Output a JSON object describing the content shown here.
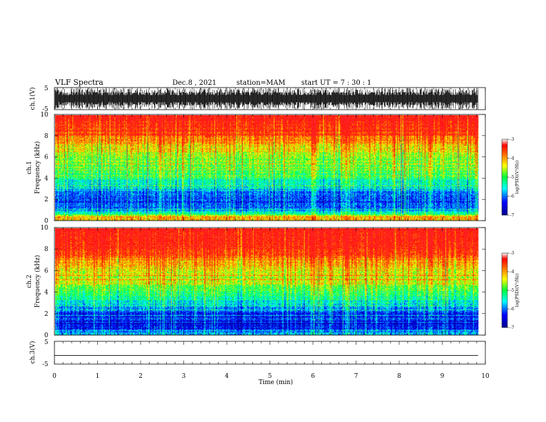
{
  "header": {
    "title": "VLF Spectra",
    "date": "Dec.8 , 2021",
    "station": "station=MAM",
    "start": "start UT = 7 : 30 : 1"
  },
  "chart_data": [
    {
      "type": "line",
      "panel": "ch1-waveform",
      "ylabel": "ch.1(V)",
      "ylim": [
        -5,
        5
      ],
      "yticks": [
        "5",
        "-5"
      ],
      "xlim": [
        0,
        10
      ],
      "data_extent_min": 9.83,
      "signal": "dense impulsive noise, amplitude ±5 V"
    },
    {
      "type": "heatmap",
      "panel": "ch1-spectrogram",
      "ylabel": "ch.1\nFrequency (kHz)",
      "ylim": [
        0,
        10
      ],
      "yticks": [
        "0",
        "2",
        "4",
        "6",
        "8",
        "10"
      ],
      "xlim": [
        0,
        10
      ],
      "data_extent_min": 9.83,
      "colorbar": {
        "min": -7,
        "max": -3,
        "ticks": [
          "-3",
          "-4",
          "-5",
          "-6",
          "-7"
        ],
        "label": "log(PSD)(V²/Hz)"
      },
      "profile_khz": [
        [
          0,
          -4.4
        ],
        [
          0.3,
          -4.0
        ],
        [
          0.6,
          -5.2
        ],
        [
          1.0,
          -6.0
        ],
        [
          1.6,
          -6.2
        ],
        [
          2.5,
          -6.1
        ],
        [
          3.2,
          -5.6
        ],
        [
          4.0,
          -5.2
        ],
        [
          5.0,
          -4.9
        ],
        [
          6.0,
          -4.7
        ],
        [
          7.0,
          -4.3
        ],
        [
          8.0,
          -3.8
        ],
        [
          9.0,
          -3.4
        ],
        [
          10.0,
          -3.2
        ]
      ],
      "bright_times_min": [
        2.45,
        6.0,
        6.75,
        8.7
      ]
    },
    {
      "type": "heatmap",
      "panel": "ch2-spectrogram",
      "ylabel": "ch.2\nFrequency (kHz)",
      "ylim": [
        0,
        10
      ],
      "yticks": [
        "0",
        "2",
        "4",
        "6",
        "8",
        "10"
      ],
      "xlim": [
        0,
        10
      ],
      "data_extent_min": 9.83,
      "colorbar": {
        "min": -7,
        "max": -3,
        "ticks": [
          "-3",
          "-4",
          "-5",
          "-6",
          "-7"
        ],
        "label": "log(PSD)(V²/Hz)"
      },
      "profile_khz": [
        [
          0,
          -5.6
        ],
        [
          0.5,
          -6.3
        ],
        [
          1.0,
          -6.5
        ],
        [
          2.0,
          -6.3
        ],
        [
          3.0,
          -5.5
        ],
        [
          4.0,
          -5.0
        ],
        [
          5.0,
          -4.6
        ],
        [
          6.0,
          -4.4
        ],
        [
          7.0,
          -3.9
        ],
        [
          8.0,
          -3.4
        ],
        [
          9.0,
          -3.2
        ],
        [
          10.0,
          -3.1
        ]
      ],
      "bright_times_min": [
        6.0,
        6.75,
        8.7
      ]
    },
    {
      "type": "line",
      "panel": "ch3-waveform",
      "ylabel": "ch.3(V)",
      "ylim": [
        -5,
        5
      ],
      "yticks": [
        "5",
        "-5"
      ],
      "xlim": [
        0,
        10
      ],
      "x": [
        0,
        9.83
      ],
      "y": [
        -1.2,
        -1.2
      ]
    }
  ],
  "xaxis": {
    "label": "Time (min)",
    "ticks": [
      "0",
      "1",
      "2",
      "3",
      "4",
      "5",
      "6",
      "7",
      "8",
      "9",
      "10"
    ]
  }
}
